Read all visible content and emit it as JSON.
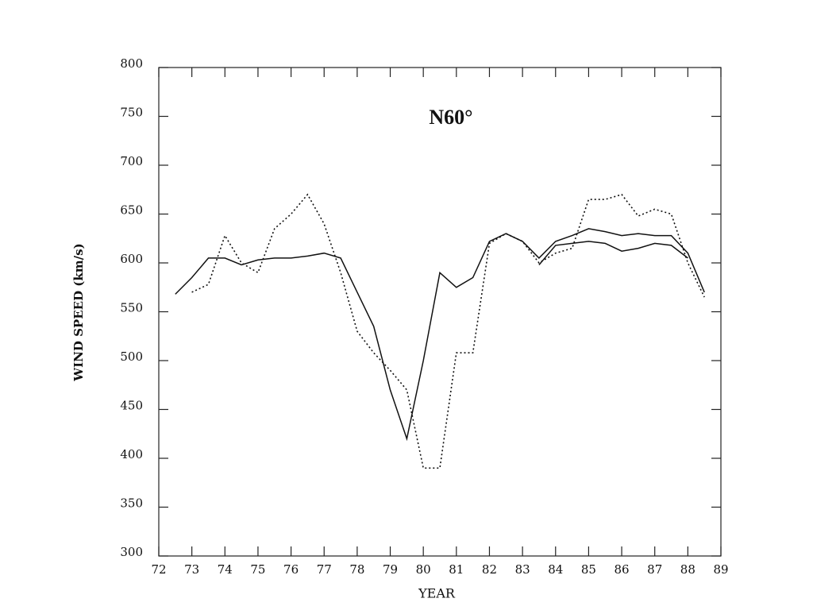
{
  "chart_data": {
    "type": "line",
    "title": "N60°",
    "x_label": "YEAR",
    "y_label": "WIND SPEED (km/s)",
    "x": [
      72.5,
      73,
      73.5,
      74,
      74.5,
      75,
      75.5,
      76,
      76.5,
      77,
      77.5,
      78,
      78.5,
      79,
      79.5,
      80,
      80.5,
      81,
      81.5,
      82,
      82.5,
      83,
      83.5,
      84,
      84.5,
      85,
      85.5,
      86,
      86.5,
      87,
      87.5,
      88,
      88.5
    ],
    "series": [
      {
        "color": "#111111",
        "style": "solid",
        "values": [
          568,
          585,
          605,
          605,
          598,
          603,
          605,
          605,
          607,
          610,
          605,
          570,
          535,
          470,
          420,
          500,
          590,
          575,
          585,
          622,
          630,
          622,
          605,
          622,
          628,
          635,
          632,
          628,
          630,
          628,
          628,
          610,
          570
        ]
      },
      {
        "color": "#111111",
        "style": "solid",
        "values": [
          null,
          null,
          null,
          null,
          null,
          null,
          null,
          null,
          null,
          null,
          null,
          null,
          null,
          null,
          null,
          null,
          null,
          null,
          null,
          null,
          null,
          null,
          598,
          618,
          620,
          622,
          620,
          612,
          615,
          620,
          618,
          605,
          null
        ]
      },
      {
        "color": "#111111",
        "style": "dotted",
        "values": [
          null,
          570,
          578,
          628,
          600,
          590,
          635,
          650,
          670,
          640,
          590,
          530,
          508,
          490,
          470,
          390,
          390,
          508,
          508,
          620,
          630,
          622,
          600,
          610,
          615,
          665,
          665,
          670,
          648,
          655,
          650,
          600,
          565
        ]
      }
    ],
    "xlim": [
      72,
      89
    ],
    "xticks": [
      72,
      73,
      74,
      75,
      76,
      77,
      78,
      79,
      80,
      81,
      82,
      83,
      84,
      85,
      86,
      87,
      88,
      89
    ],
    "ylim": [
      300,
      800
    ],
    "yticks": [
      300,
      350,
      400,
      450,
      500,
      550,
      600,
      650,
      700,
      750,
      800
    ]
  }
}
